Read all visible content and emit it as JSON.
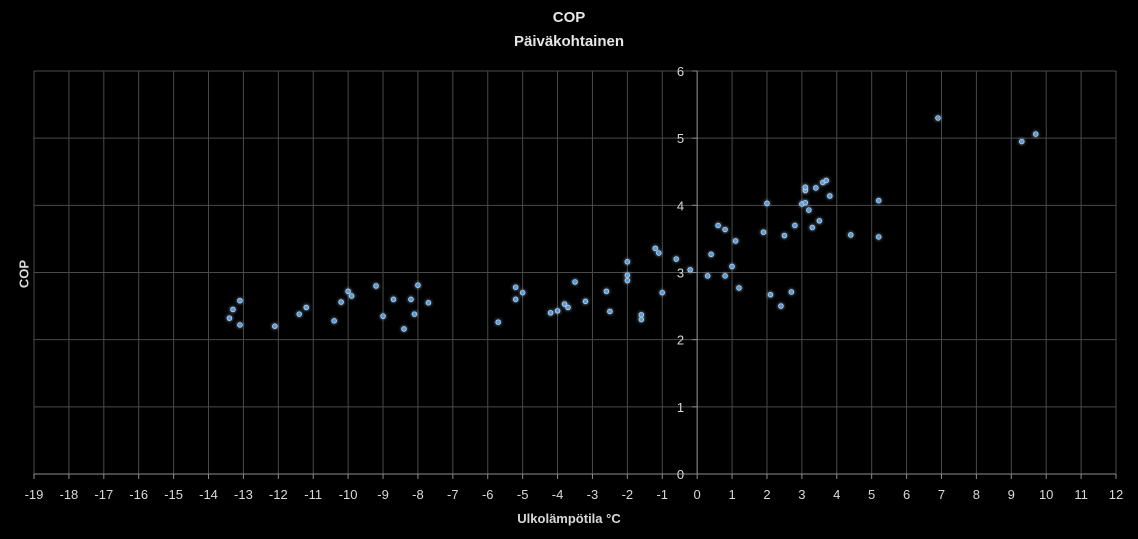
{
  "chart_data": {
    "type": "scatter",
    "title": "COP",
    "subtitle": "Päiväkohtainen",
    "xlabel": "Ulkolämpötila °C",
    "ylabel": "COP",
    "xlim": [
      -19,
      12
    ],
    "ylim": [
      0,
      6
    ],
    "x_ticks": [
      -19,
      -18,
      -17,
      -16,
      -15,
      -14,
      -13,
      -12,
      -11,
      -10,
      -9,
      -8,
      -7,
      -6,
      -5,
      -4,
      -3,
      -2,
      -1,
      0,
      1,
      2,
      3,
      4,
      5,
      6,
      7,
      8,
      9,
      10,
      11,
      12
    ],
    "y_ticks": [
      0,
      1,
      2,
      3,
      4,
      5,
      6
    ],
    "grid": true,
    "colors": {
      "background": "#000000",
      "point": "#5b9bd5",
      "grid": "#4a4a4a",
      "text": "#d9d9d9"
    },
    "points": [
      [
        -13.4,
        2.32
      ],
      [
        -13.3,
        2.45
      ],
      [
        -13.1,
        2.58
      ],
      [
        -13.1,
        2.22
      ],
      [
        -12.1,
        2.2
      ],
      [
        -11.4,
        2.38
      ],
      [
        -11.2,
        2.48
      ],
      [
        -10.4,
        2.28
      ],
      [
        -10.2,
        2.56
      ],
      [
        -10.0,
        2.72
      ],
      [
        -9.9,
        2.65
      ],
      [
        -9.2,
        2.8
      ],
      [
        -9.0,
        2.35
      ],
      [
        -8.7,
        2.6
      ],
      [
        -8.4,
        2.16
      ],
      [
        -8.2,
        2.6
      ],
      [
        -8.1,
        2.38
      ],
      [
        -8.0,
        2.81
      ],
      [
        -7.7,
        2.55
      ],
      [
        -5.7,
        2.26
      ],
      [
        -5.2,
        2.78
      ],
      [
        -5.2,
        2.6
      ],
      [
        -5.0,
        2.7
      ],
      [
        -4.2,
        2.4
      ],
      [
        -4.0,
        2.43
      ],
      [
        -3.8,
        2.53
      ],
      [
        -3.7,
        2.48
      ],
      [
        -3.5,
        2.86
      ],
      [
        -3.2,
        2.57
      ],
      [
        -2.6,
        2.72
      ],
      [
        -2.5,
        2.42
      ],
      [
        -2.0,
        3.16
      ],
      [
        -2.0,
        2.96
      ],
      [
        -2.0,
        2.88
      ],
      [
        -1.6,
        2.37
      ],
      [
        -1.6,
        2.3
      ],
      [
        -1.2,
        3.36
      ],
      [
        -1.1,
        3.29
      ],
      [
        -1.0,
        2.7
      ],
      [
        -0.6,
        3.2
      ],
      [
        -0.2,
        3.04
      ],
      [
        0.3,
        2.95
      ],
      [
        0.4,
        3.27
      ],
      [
        0.6,
        3.7
      ],
      [
        0.8,
        3.64
      ],
      [
        0.8,
        2.95
      ],
      [
        1.0,
        3.09
      ],
      [
        1.1,
        3.47
      ],
      [
        1.2,
        2.77
      ],
      [
        1.9,
        3.6
      ],
      [
        2.0,
        4.03
      ],
      [
        2.1,
        2.67
      ],
      [
        2.4,
        2.5
      ],
      [
        2.5,
        3.55
      ],
      [
        2.7,
        2.71
      ],
      [
        2.8,
        3.7
      ],
      [
        3.0,
        4.02
      ],
      [
        3.1,
        4.04
      ],
      [
        3.1,
        4.22
      ],
      [
        3.1,
        4.27
      ],
      [
        3.2,
        3.93
      ],
      [
        3.3,
        3.67
      ],
      [
        3.4,
        4.26
      ],
      [
        3.5,
        3.77
      ],
      [
        3.6,
        4.34
      ],
      [
        3.7,
        4.37
      ],
      [
        3.8,
        4.14
      ],
      [
        4.4,
        3.56
      ],
      [
        5.2,
        4.07
      ],
      [
        5.2,
        3.53
      ],
      [
        6.9,
        5.3
      ],
      [
        9.3,
        4.95
      ],
      [
        9.7,
        5.06
      ]
    ]
  }
}
